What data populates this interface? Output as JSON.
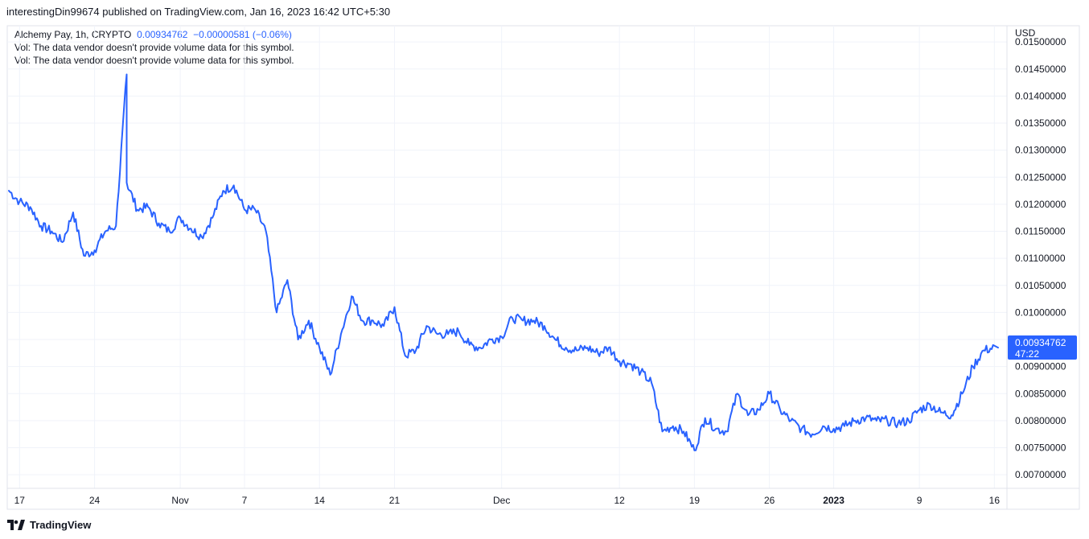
{
  "header": {
    "published_text": "interestingDin99674 published on TradingView.com, Jan 16, 2023 16:42 UTC+5:30"
  },
  "legend": {
    "symbol": "Alchemy Pay, 1h, CRYPTO",
    "price": "0.00934762",
    "change": "−0.00000581 (−0.06%)",
    "vol_line_1": "Vol: The data vendor doesn't provide volume data for this symbol.",
    "vol_line_2": "Vol: The data vendor doesn't provide volume data for this symbol."
  },
  "price_axis": {
    "currency": "USD",
    "last_price": "0.00934762",
    "countdown": "47:22"
  },
  "footer": {
    "brand": "TradingView"
  },
  "colors": {
    "line": "#2962ff",
    "grid": "#f0f3fa",
    "axis_text": "#131722"
  },
  "chart_data": {
    "type": "line",
    "title": "Alchemy Pay, 1h, CRYPTO",
    "ylabel": "USD",
    "xlabel": "",
    "ylim": [
      0.00675,
      0.0153
    ],
    "x_ticks": [
      "17",
      "24",
      "Nov",
      "7",
      "14",
      "21",
      "Dec",
      "12",
      "19",
      "26",
      "2023",
      "9",
      "16"
    ],
    "y_ticks": [
      "0.01500000",
      "0.01450000",
      "0.01400000",
      "0.01350000",
      "0.01300000",
      "0.01250000",
      "0.01200000",
      "0.01150000",
      "0.01100000",
      "0.01050000",
      "0.01000000",
      "0.00950000",
      "0.00900000",
      "0.00850000",
      "0.00800000",
      "0.00750000",
      "0.00700000"
    ],
    "grid": true,
    "series": [
      {
        "x": [
          "2022-10-16",
          "2022-10-17",
          "2022-10-18",
          "2022-10-19",
          "2022-10-20",
          "2022-10-21",
          "2022-10-22",
          "2022-10-23",
          "2022-10-24",
          "2022-10-25",
          "2022-10-26",
          "2022-10-27",
          "2022-10-27",
          "2022-10-28",
          "2022-10-29",
          "2022-10-30",
          "2022-10-31",
          "2022-11-01",
          "2022-11-02",
          "2022-11-03",
          "2022-11-04",
          "2022-11-05",
          "2022-11-06",
          "2022-11-07",
          "2022-11-08",
          "2022-11-09",
          "2022-11-10",
          "2022-11-11",
          "2022-11-12",
          "2022-11-13",
          "2022-11-14",
          "2022-11-15",
          "2022-11-16",
          "2022-11-17",
          "2022-11-18",
          "2022-11-19",
          "2022-11-20",
          "2022-11-21",
          "2022-11-22",
          "2022-11-23",
          "2022-11-24",
          "2022-11-25",
          "2022-11-26",
          "2022-11-27",
          "2022-11-28",
          "2022-11-29",
          "2022-11-30",
          "2022-12-01",
          "2022-12-02",
          "2022-12-03",
          "2022-12-04",
          "2022-12-05",
          "2022-12-06",
          "2022-12-07",
          "2022-12-08",
          "2022-12-09",
          "2022-12-10",
          "2022-12-11",
          "2022-12-12",
          "2022-12-13",
          "2022-12-14",
          "2022-12-15",
          "2022-12-16",
          "2022-12-17",
          "2022-12-18",
          "2022-12-19",
          "2022-12-20",
          "2022-12-21",
          "2022-12-22",
          "2022-12-23",
          "2022-12-24",
          "2022-12-25",
          "2022-12-26",
          "2022-12-27",
          "2022-12-28",
          "2022-12-29",
          "2022-12-30",
          "2022-12-31",
          "2023-01-01",
          "2023-01-02",
          "2023-01-03",
          "2023-01-04",
          "2023-01-05",
          "2023-01-06",
          "2023-01-07",
          "2023-01-08",
          "2023-01-09",
          "2023-01-10",
          "2023-01-11",
          "2023-01-12",
          "2023-01-13",
          "2023-01-14",
          "2023-01-15",
          "2023-01-16"
        ],
        "values": [
          0.01225,
          0.01205,
          0.01195,
          0.0116,
          0.0115,
          0.0113,
          0.01185,
          0.01105,
          0.01115,
          0.0115,
          0.0116,
          0.0144,
          0.0124,
          0.0119,
          0.01195,
          0.01165,
          0.0115,
          0.01175,
          0.01155,
          0.0114,
          0.01175,
          0.01225,
          0.01235,
          0.0119,
          0.0119,
          0.0115,
          0.01,
          0.0106,
          0.0095,
          0.00985,
          0.00935,
          0.00885,
          0.0096,
          0.0103,
          0.00985,
          0.00985,
          0.00975,
          0.0101,
          0.0092,
          0.0093,
          0.00975,
          0.0096,
          0.0096,
          0.00965,
          0.0094,
          0.00935,
          0.0095,
          0.00955,
          0.0099,
          0.00985,
          0.00985,
          0.00975,
          0.0095,
          0.00935,
          0.0093,
          0.00935,
          0.00925,
          0.00935,
          0.0091,
          0.00905,
          0.0089,
          0.0087,
          0.0078,
          0.0079,
          0.0078,
          0.00745,
          0.00805,
          0.00785,
          0.0078,
          0.0085,
          0.0081,
          0.0082,
          0.0085,
          0.0082,
          0.008,
          0.00785,
          0.00775,
          0.0079,
          0.00785,
          0.0079,
          0.008,
          0.00805,
          0.008,
          0.008,
          0.00795,
          0.008,
          0.0082,
          0.0083,
          0.00815,
          0.0081,
          0.0085,
          0.009,
          0.0093,
          0.00935
        ]
      }
    ]
  }
}
